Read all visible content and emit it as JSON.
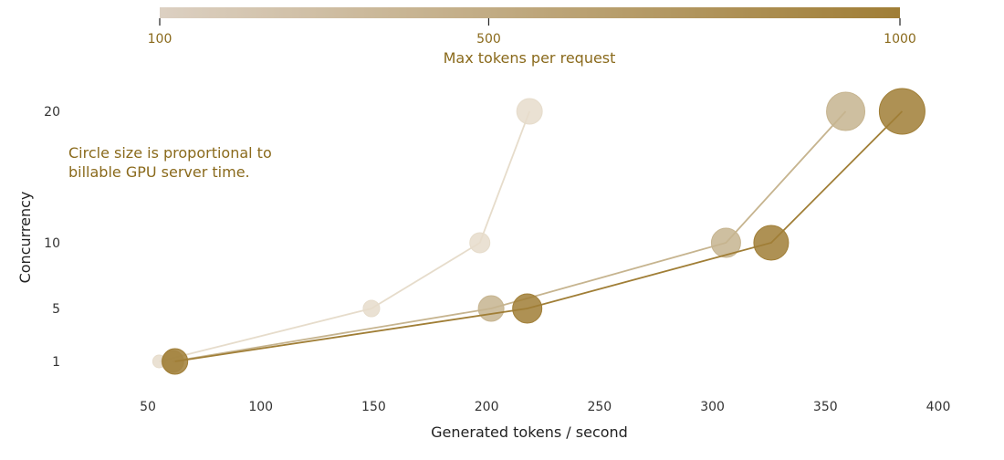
{
  "chart_data": {
    "type": "scatter",
    "xlabel": "Generated tokens / second",
    "ylabel": "Concurrency",
    "xlim": [
      40,
      420
    ],
    "ylim": [
      -2,
      22
    ],
    "x_ticks": [
      50,
      100,
      150,
      200,
      250,
      300,
      350,
      400
    ],
    "y_ticks": [
      1,
      5,
      10,
      20
    ],
    "grid": false,
    "annotation": [
      "Circle size is proportional to",
      "billable GPU server time."
    ],
    "colorbar": {
      "label": "Max tokens per request",
      "ticks": [
        100,
        500,
        1000
      ],
      "range": [
        100,
        1000
      ],
      "color_low": "#dcd0c2",
      "color_high": "#a07e36"
    },
    "series": [
      {
        "max_tokens": 100,
        "color": "#e6dccb",
        "points": [
          {
            "x": 55,
            "y": 1,
            "size": 7
          },
          {
            "x": 149,
            "y": 5,
            "size": 9
          },
          {
            "x": 197,
            "y": 10,
            "size": 11
          },
          {
            "x": 219,
            "y": 20,
            "size": 14
          }
        ]
      },
      {
        "max_tokens": 500,
        "color": "#c6b48f",
        "points": [
          {
            "x": 61,
            "y": 1,
            "size": 12
          },
          {
            "x": 202,
            "y": 5,
            "size": 14
          },
          {
            "x": 306,
            "y": 10,
            "size": 16
          },
          {
            "x": 359,
            "y": 20,
            "size": 21
          }
        ]
      },
      {
        "max_tokens": 1000,
        "color": "#a07e36",
        "points": [
          {
            "x": 62,
            "y": 1,
            "size": 14
          },
          {
            "x": 218,
            "y": 5,
            "size": 16
          },
          {
            "x": 326,
            "y": 10,
            "size": 19
          },
          {
            "x": 384,
            "y": 20,
            "size": 25
          }
        ]
      }
    ]
  }
}
